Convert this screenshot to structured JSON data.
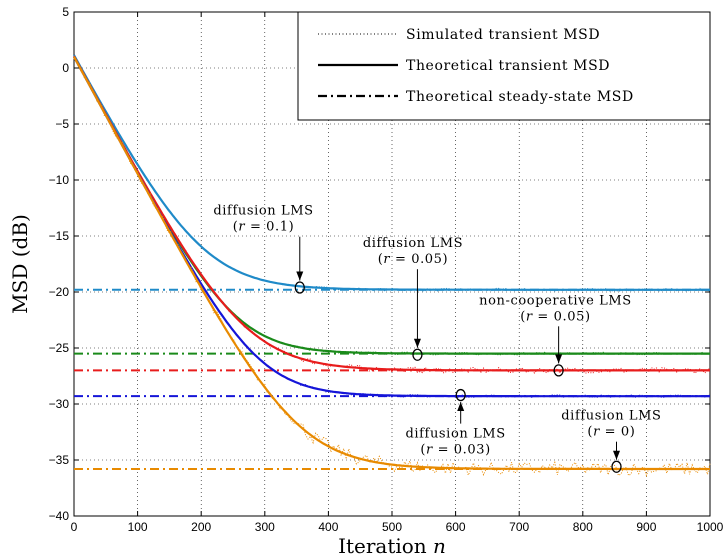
{
  "chart_data": {
    "type": "line",
    "xlabel": "Iteration",
    "xlabel_var": "n",
    "ylabel": "MSD (dB)",
    "xlim": [
      0,
      1000
    ],
    "ylim": [
      -40,
      5
    ],
    "xticks": [
      0,
      100,
      200,
      300,
      400,
      500,
      600,
      700,
      800,
      900,
      1000
    ],
    "yticks": [
      5,
      0,
      -5,
      -10,
      -15,
      -20,
      -25,
      -30,
      -35,
      -40
    ],
    "grid": true,
    "legend_position": "top-right",
    "legend": [
      {
        "label": "Simulated transient MSD",
        "style": "dotted"
      },
      {
        "label": "Theoretical transient MSD",
        "style": "solid"
      },
      {
        "label": "Theoretical steady-state MSD",
        "style": "dashdot"
      }
    ],
    "series": [
      {
        "color": "#1f8ac8",
        "start": 1,
        "steady": -19.8,
        "tau": 80,
        "noise": 0.12
      },
      {
        "color": "#1a8a1a",
        "start": 1,
        "steady": -25.5,
        "tau": 70,
        "noise": 0.12
      },
      {
        "color": "#e81c1c",
        "start": 1,
        "steady": -27.0,
        "tau": 82,
        "noise": 0.25
      },
      {
        "color": "#1515d8",
        "start": 1,
        "steady": -29.3,
        "tau": 70,
        "noise": 0.12
      },
      {
        "color": "#e88a00",
        "start": 1,
        "steady": -35.8,
        "tau": 82,
        "noise": 0.6
      }
    ],
    "annotations": [
      {
        "line1": "diffusion LMS",
        "line2": "(r = 0.1)",
        "point": [
          355,
          -19.6
        ],
        "text_at": [
          298,
          -13.1
        ]
      },
      {
        "line1": "diffusion LMS",
        "line2": "(r = 0.05)",
        "point": [
          540,
          -25.6
        ],
        "text_at": [
          533,
          -16.0
        ]
      },
      {
        "line1": "non-cooperative LMS",
        "line2": "(r = 0.05)",
        "point": [
          762,
          -27.0
        ],
        "text_at": [
          757,
          -21.1
        ]
      },
      {
        "line1": "diffusion LMS",
        "line2": "(r = 0.03)",
        "point": [
          608,
          -29.2
        ],
        "text_at": [
          600,
          -33.0
        ]
      },
      {
        "line1": "diffusion LMS",
        "line2": "(r = 0)",
        "point": [
          853,
          -35.6
        ],
        "text_at": [
          845,
          -31.4
        ]
      }
    ]
  }
}
